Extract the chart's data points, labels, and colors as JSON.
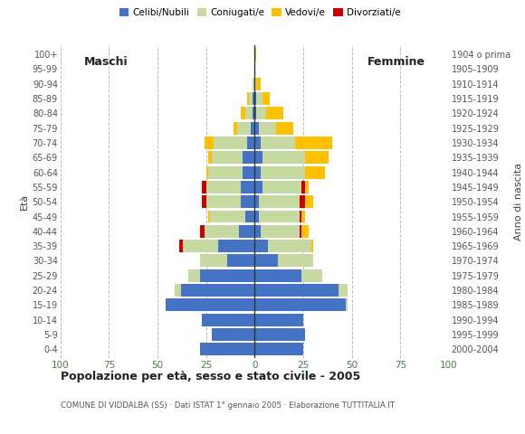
{
  "age_groups": [
    "0-4",
    "5-9",
    "10-14",
    "15-19",
    "20-24",
    "25-29",
    "30-34",
    "35-39",
    "40-44",
    "45-49",
    "50-54",
    "55-59",
    "60-64",
    "65-69",
    "70-74",
    "75-79",
    "80-84",
    "85-89",
    "90-94",
    "95-99",
    "100+"
  ],
  "birth_years": [
    "2000-2004",
    "1995-1999",
    "1990-1994",
    "1985-1989",
    "1980-1984",
    "1975-1979",
    "1970-1974",
    "1965-1969",
    "1960-1964",
    "1955-1959",
    "1950-1954",
    "1945-1949",
    "1940-1944",
    "1935-1939",
    "1930-1934",
    "1925-1929",
    "1920-1924",
    "1915-1919",
    "1910-1914",
    "1905-1909",
    "1904 o prima"
  ],
  "male": {
    "celibe": [
      28,
      22,
      27,
      46,
      38,
      28,
      14,
      19,
      8,
      5,
      7,
      7,
      6,
      6,
      4,
      2,
      1,
      1,
      0,
      0,
      0
    ],
    "coniugato": [
      0,
      0,
      0,
      0,
      3,
      6,
      14,
      18,
      18,
      18,
      18,
      18,
      18,
      16,
      17,
      7,
      4,
      2,
      1,
      0,
      0
    ],
    "vedovo": [
      0,
      0,
      0,
      0,
      0,
      0,
      0,
      0,
      0,
      1,
      0,
      0,
      1,
      2,
      5,
      2,
      2,
      1,
      0,
      0,
      0
    ],
    "divorziato": [
      0,
      0,
      0,
      0,
      0,
      0,
      0,
      2,
      2,
      0,
      2,
      2,
      0,
      0,
      0,
      0,
      0,
      0,
      0,
      0,
      0
    ]
  },
  "female": {
    "nubile": [
      25,
      26,
      25,
      47,
      43,
      24,
      12,
      7,
      3,
      2,
      2,
      4,
      3,
      4,
      3,
      2,
      1,
      1,
      0,
      0,
      0
    ],
    "coniugata": [
      0,
      0,
      0,
      1,
      5,
      11,
      18,
      22,
      20,
      21,
      21,
      20,
      23,
      22,
      18,
      9,
      5,
      3,
      1,
      0,
      0
    ],
    "vedova": [
      0,
      0,
      0,
      0,
      0,
      0,
      0,
      1,
      4,
      2,
      4,
      2,
      10,
      12,
      19,
      9,
      9,
      4,
      2,
      0,
      1
    ],
    "divorziata": [
      0,
      0,
      0,
      0,
      0,
      0,
      0,
      0,
      1,
      1,
      3,
      2,
      0,
      0,
      0,
      0,
      0,
      0,
      0,
      0,
      0
    ]
  },
  "colors": {
    "celibe": "#4472c4",
    "coniugato": "#c5d9a0",
    "vedovo": "#ffc000",
    "divorziato": "#cc0000"
  },
  "xlim": 100,
  "title": "Popolazione per età, sesso e stato civile - 2005",
  "subtitle": "COMUNE DI VIDDALBA (SS) · Dati ISTAT 1° gennaio 2005 · Elaborazione TUTTITALIA.IT",
  "maschi_label": "Maschi",
  "femmine_label": "Femmine",
  "ylabel_left": "Età",
  "ylabel_right": "Anno di nascita",
  "legend_labels": [
    "Celibi/Nubili",
    "Coniugati/e",
    "Vedovi/e",
    "Divorziati/e"
  ],
  "bg_color": "#ffffff",
  "grid_color": "#bbbbbb",
  "tick_color": "#4a7a4a",
  "xtick_vals": [
    100,
    75,
    50,
    25,
    0,
    25,
    50,
    75,
    100
  ]
}
